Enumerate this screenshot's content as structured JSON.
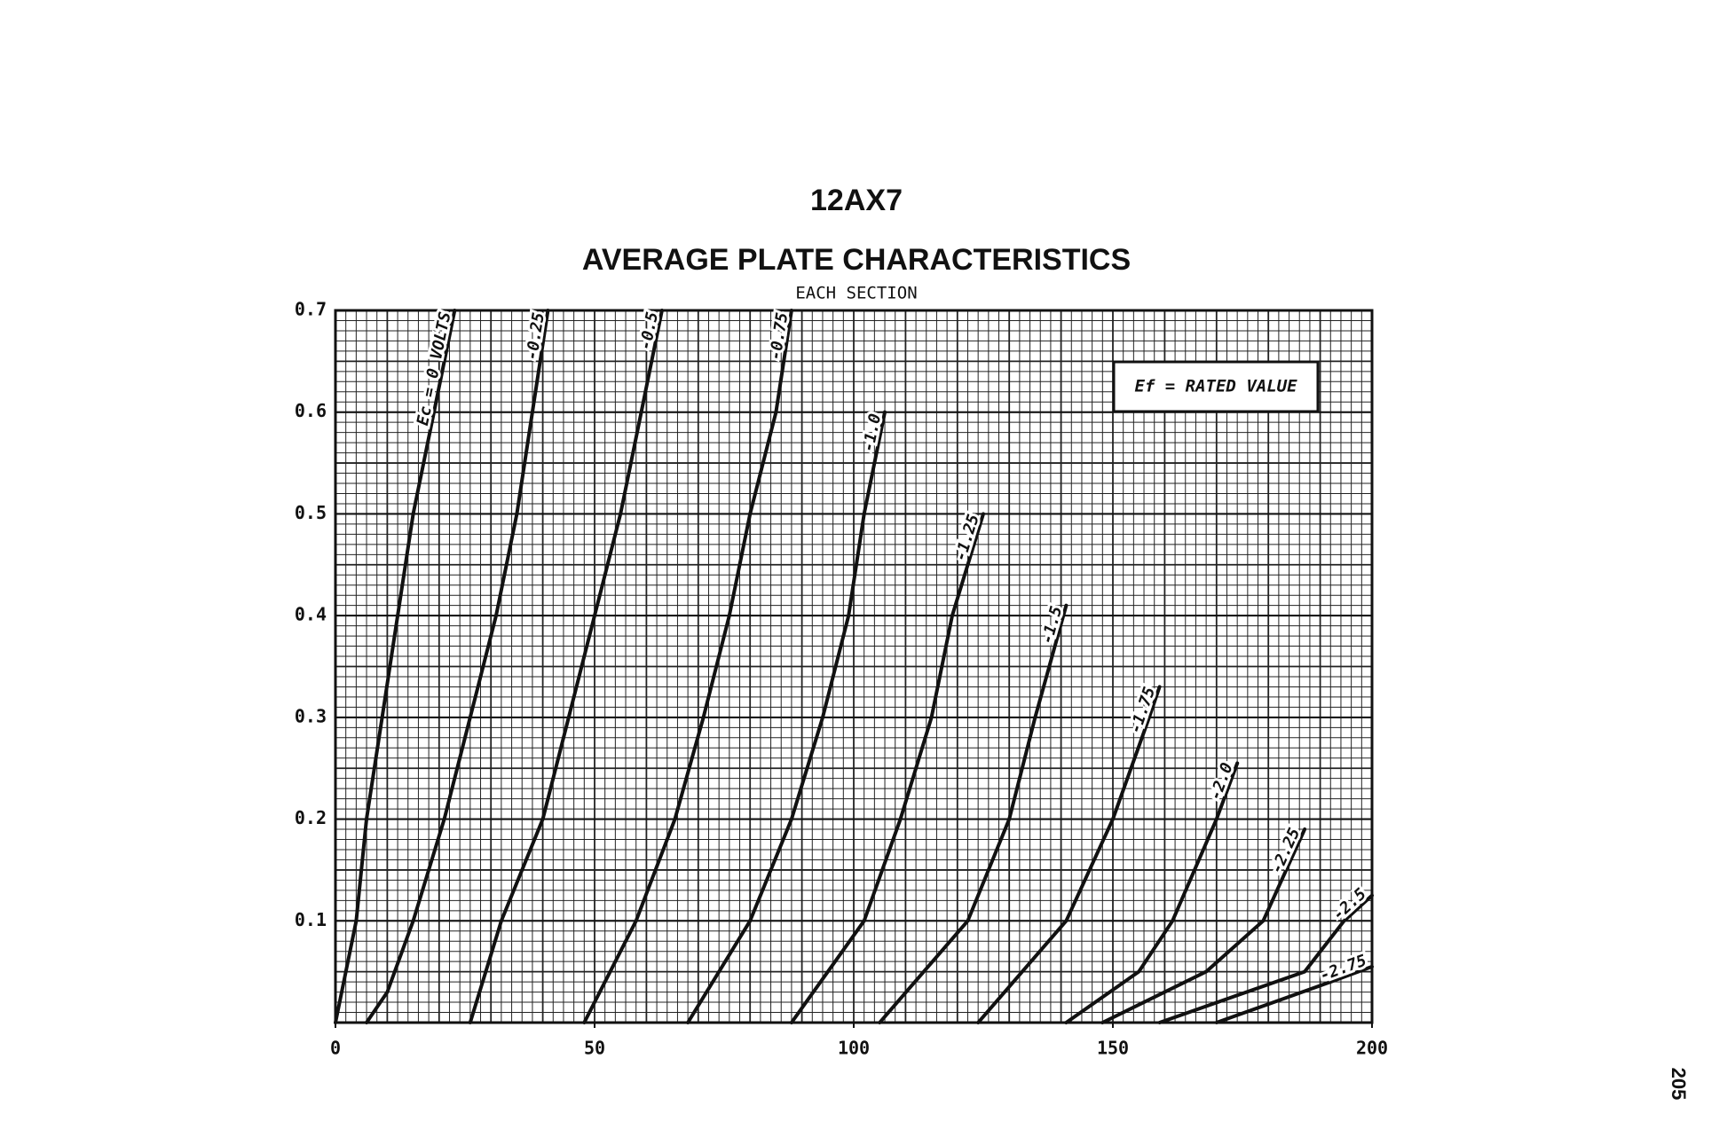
{
  "chart_data": {
    "type": "line",
    "title": "12AX7",
    "subtitle": "AVERAGE PLATE CHARACTERISTICS",
    "caption": "EACH SECTION",
    "annotation": "Ef = RATED VALUE",
    "page_number": "205",
    "xlim": [
      0,
      200
    ],
    "xticks": [
      0,
      50,
      100,
      150,
      200
    ],
    "ylim": [
      0,
      0.7
    ],
    "yticks": [
      0.1,
      0.2,
      0.3,
      0.4,
      0.5,
      0.6,
      0.7
    ],
    "grid": true,
    "series": [
      {
        "name": "Ec = 0 VOLTS",
        "color": "#111111",
        "x": [
          0,
          2,
          4,
          6,
          9,
          12,
          15,
          19,
          23
        ],
        "values": [
          0,
          0.05,
          0.1,
          0.2,
          0.3,
          0.4,
          0.5,
          0.6,
          0.7
        ]
      },
      {
        "name": "-0.25",
        "color": "#111111",
        "x": [
          6,
          10,
          15,
          21,
          26,
          31,
          35,
          38,
          41
        ],
        "values": [
          0,
          0.03,
          0.1,
          0.2,
          0.3,
          0.4,
          0.5,
          0.6,
          0.7
        ]
      },
      {
        "name": "-0.5",
        "color": "#111111",
        "x": [
          26,
          32,
          40,
          45,
          50,
          55,
          59,
          63
        ],
        "values": [
          0,
          0.1,
          0.2,
          0.3,
          0.4,
          0.5,
          0.6,
          0.7
        ]
      },
      {
        "name": "-0.75",
        "color": "#111111",
        "x": [
          48,
          58,
          65.5,
          71,
          76,
          80,
          85,
          88
        ],
        "values": [
          0,
          0.1,
          0.2,
          0.3,
          0.4,
          0.5,
          0.6,
          0.7
        ]
      },
      {
        "name": "-1.0",
        "color": "#111111",
        "x": [
          68,
          80,
          88,
          94,
          99,
          102,
          106
        ],
        "values": [
          0,
          0.1,
          0.2,
          0.3,
          0.4,
          0.5,
          0.6
        ]
      },
      {
        "name": "-1.25",
        "color": "#111111",
        "x": [
          88,
          102,
          109,
          115,
          119,
          125
        ],
        "values": [
          0,
          0.1,
          0.2,
          0.3,
          0.4,
          0.5
        ]
      },
      {
        "name": "-1.5",
        "color": "#111111",
        "x": [
          105,
          122,
          130,
          135,
          141
        ],
        "values": [
          0,
          0.1,
          0.2,
          0.3,
          0.41
        ]
      },
      {
        "name": "-1.75",
        "color": "#111111",
        "x": [
          124,
          141,
          150,
          157,
          159
        ],
        "values": [
          0,
          0.1,
          0.2,
          0.3,
          0.33
        ]
      },
      {
        "name": "-2.0",
        "color": "#111111",
        "x": [
          141,
          155,
          161.5,
          170,
          174
        ],
        "values": [
          0,
          0.05,
          0.1,
          0.2,
          0.255
        ]
      },
      {
        "name": "-2.25",
        "color": "#111111",
        "x": [
          148,
          168,
          179,
          187
        ],
        "values": [
          0,
          0.05,
          0.1,
          0.19
        ]
      },
      {
        "name": "-2.5",
        "color": "#111111",
        "x": [
          159,
          187,
          194.6,
          200
        ],
        "values": [
          0,
          0.05,
          0.1,
          0.125
        ]
      },
      {
        "name": "-2.75",
        "color": "#111111",
        "x": [
          170,
          181,
          192,
          200
        ],
        "values": [
          0,
          0.02,
          0.04,
          0.055
        ]
      }
    ]
  }
}
